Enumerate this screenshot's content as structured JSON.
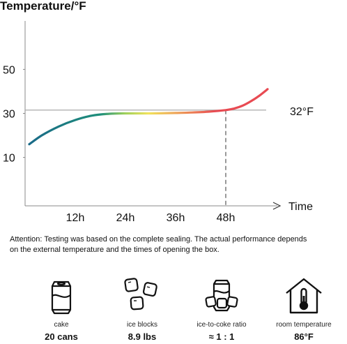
{
  "chart_data": {
    "type": "line",
    "title": "Temperature/°F",
    "xlabel": "Time",
    "ylabel": "Temperature/°F",
    "x_tick_values": [
      12,
      24,
      36,
      48
    ],
    "x_tick_labels": [
      "12h",
      "24h",
      "36h",
      "48h"
    ],
    "y_ticks": [
      10,
      30,
      50
    ],
    "xlim": [
      0,
      60
    ],
    "ylim": [
      -12,
      72
    ],
    "grid": false,
    "reference_line": {
      "y": 31.5,
      "label": "32°F"
    },
    "marker_x": 48,
    "series": [
      {
        "x": [
          1,
          4,
          8,
          12,
          16,
          20,
          24,
          30,
          36,
          40,
          44,
          48,
          50,
          52,
          54,
          56,
          58
        ],
        "y": [
          16,
          20,
          24,
          27,
          29,
          29.8,
          30,
          30,
          30.2,
          30.4,
          30.8,
          31.5,
          32.2,
          33.5,
          35.5,
          38,
          41
        ]
      }
    ]
  },
  "attention": {
    "line1": "Attention: Testing was based on the complete sealing. The actual performance depends",
    "line2": "on the external temperature and the times of opening the box."
  },
  "stats": [
    {
      "icon": "soda-can-icon",
      "label": "cake",
      "value": "20 cans"
    },
    {
      "icon": "ice-cubes-icon",
      "label": "ice blocks",
      "value": "8.9 lbs"
    },
    {
      "icon": "can-with-ice-icon",
      "label": "ice-to-coke ratio",
      "value": "≈ 1 : 1"
    },
    {
      "icon": "house-thermometer-icon",
      "label": "room temperature",
      "value": "86°F"
    }
  ],
  "colors": {
    "curve_start": "#1a6a88",
    "curve_teal": "#1e8f7a",
    "curve_green": "#9ccf5a",
    "curve_yellow": "#f1e25a",
    "curve_red": "#e84a52",
    "axis": "#888888",
    "reference_line": "#aaaaaa"
  }
}
